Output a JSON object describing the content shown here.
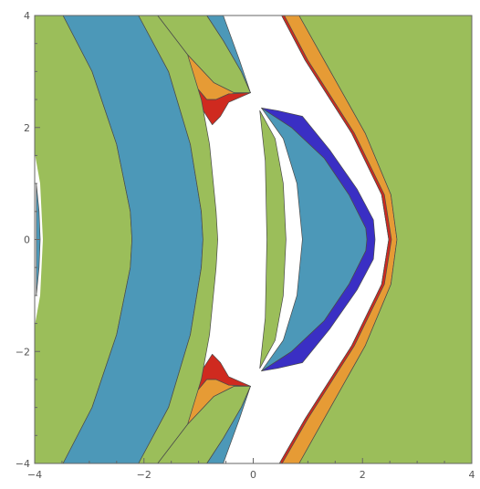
{
  "chart_data": {
    "type": "region-plot",
    "title": "",
    "xlabel": "",
    "ylabel": "",
    "xlim": [
      -4,
      4
    ],
    "ylim": [
      -4,
      4
    ],
    "grid": false,
    "legend": "none",
    "x_ticks": [
      {
        "value": -4,
        "label": "−4"
      },
      {
        "value": -2,
        "label": "−2"
      },
      {
        "value": 0,
        "label": "0"
      },
      {
        "value": 2,
        "label": "2"
      },
      {
        "value": 4,
        "label": "4"
      }
    ],
    "y_ticks": [
      {
        "value": 4,
        "label": "4"
      },
      {
        "value": 2,
        "label": "2"
      },
      {
        "value": 0,
        "label": "0"
      },
      {
        "value": -2,
        "label": "−2"
      },
      {
        "value": -4,
        "label": "−4"
      }
    ],
    "colors": {
      "green": "#9bbe5a",
      "blue": "#4c98b8",
      "orange": "#e69b35",
      "red": "#cf2a1f",
      "indigo": "#3a2fc4",
      "white": "#ffffff"
    },
    "regions": [
      {
        "name": "right-orange-fringe",
        "color": "orange",
        "points": [
          [
            0.48,
            -4
          ],
          [
            0.95,
            -3.2
          ],
          [
            1.8,
            -1.9
          ],
          [
            2.35,
            -0.8
          ],
          [
            2.48,
            0
          ],
          [
            2.35,
            0.8
          ],
          [
            1.8,
            1.9
          ],
          [
            0.95,
            3.2
          ],
          [
            0.52,
            4
          ],
          [
            0.84,
            4
          ],
          [
            1.3,
            3.2
          ],
          [
            2.05,
            1.9
          ],
          [
            2.52,
            0.8
          ],
          [
            2.63,
            0
          ],
          [
            2.52,
            -0.8
          ],
          [
            2.05,
            -1.9
          ],
          [
            1.3,
            -3.2
          ],
          [
            0.84,
            -4
          ]
        ]
      },
      {
        "name": "right-red-edge",
        "color": "red",
        "points": [
          [
            0.48,
            -4
          ],
          [
            0.95,
            -3.2
          ],
          [
            1.8,
            -1.9
          ],
          [
            2.35,
            -0.8
          ],
          [
            2.48,
            0
          ],
          [
            2.35,
            0.8
          ],
          [
            1.8,
            1.9
          ],
          [
            0.95,
            3.2
          ],
          [
            0.52,
            4
          ],
          [
            0.57,
            4
          ],
          [
            1.0,
            3.2
          ],
          [
            1.85,
            1.9
          ],
          [
            2.4,
            0.8
          ],
          [
            2.53,
            0
          ],
          [
            2.4,
            -0.8
          ],
          [
            1.85,
            -1.9
          ],
          [
            1.0,
            -3.2
          ],
          [
            0.53,
            -4
          ]
        ]
      },
      {
        "name": "right-green",
        "color": "green",
        "points": [
          [
            0.84,
            -4
          ],
          [
            1.3,
            -3.2
          ],
          [
            2.05,
            -1.9
          ],
          [
            2.52,
            -0.8
          ],
          [
            2.63,
            0
          ],
          [
            2.52,
            0.8
          ],
          [
            2.05,
            1.9
          ],
          [
            1.3,
            3.2
          ],
          [
            0.84,
            4
          ],
          [
            4,
            4
          ],
          [
            4,
            -4
          ]
        ]
      },
      {
        "name": "inner-indigo-band",
        "color": "indigo",
        "points": [
          [
            0.15,
            2.35
          ],
          [
            0.45,
            2.3
          ],
          [
            0.9,
            2.2
          ],
          [
            1.4,
            1.6
          ],
          [
            1.9,
            0.9
          ],
          [
            2.2,
            0.35
          ],
          [
            2.23,
            0
          ],
          [
            2.2,
            -0.35
          ],
          [
            1.9,
            -0.9
          ],
          [
            1.4,
            -1.6
          ],
          [
            0.9,
            -2.2
          ],
          [
            0.45,
            -2.3
          ],
          [
            0.15,
            -2.35
          ],
          [
            0.7,
            -2.0
          ],
          [
            1.3,
            -1.45
          ],
          [
            1.75,
            -0.8
          ],
          [
            2.06,
            -0.2
          ],
          [
            2.08,
            0
          ],
          [
            2.06,
            0.2
          ],
          [
            1.75,
            0.8
          ],
          [
            1.3,
            1.45
          ],
          [
            0.7,
            2.0
          ]
        ]
      },
      {
        "name": "inner-blue-lens",
        "color": "blue",
        "points": [
          [
            0.15,
            2.35
          ],
          [
            0.7,
            2.0
          ],
          [
            1.3,
            1.45
          ],
          [
            1.75,
            0.8
          ],
          [
            2.06,
            0.2
          ],
          [
            2.08,
            0
          ],
          [
            2.06,
            -0.2
          ],
          [
            1.75,
            -0.8
          ],
          [
            1.3,
            -1.45
          ],
          [
            0.7,
            -2.0
          ],
          [
            0.15,
            -2.35
          ],
          [
            0.55,
            -1.8
          ],
          [
            0.8,
            -1.0
          ],
          [
            0.9,
            0
          ],
          [
            0.8,
            1.0
          ],
          [
            0.55,
            1.8
          ]
        ]
      },
      {
        "name": "inner-green-lens",
        "color": "green",
        "points": [
          [
            0.12,
            2.3
          ],
          [
            0.4,
            1.8
          ],
          [
            0.55,
            1.0
          ],
          [
            0.6,
            0
          ],
          [
            0.55,
            -1.0
          ],
          [
            0.4,
            -1.8
          ],
          [
            0.12,
            -2.3
          ],
          [
            0.22,
            -1.4
          ],
          [
            0.25,
            0
          ],
          [
            0.22,
            1.4
          ]
        ]
      },
      {
        "name": "upper-white-sliver-fill",
        "color": "blue",
        "points": [
          [
            -0.85,
            4
          ],
          [
            -0.55,
            3.55
          ],
          [
            -0.22,
            3.0
          ],
          [
            -0.05,
            2.62
          ],
          [
            -0.25,
            3.2
          ],
          [
            -0.55,
            4
          ]
        ]
      },
      {
        "name": "upper-green-tongue",
        "color": "green",
        "points": [
          [
            -1.75,
            4
          ],
          [
            -1.2,
            3.3
          ],
          [
            -0.72,
            2.8
          ],
          [
            -0.35,
            2.62
          ],
          [
            -0.05,
            2.62
          ],
          [
            -0.22,
            3.0
          ],
          [
            -0.55,
            3.55
          ],
          [
            -0.85,
            4
          ]
        ]
      },
      {
        "name": "upper-orange-horn",
        "color": "orange",
        "points": [
          [
            -1.55,
            3.3
          ],
          [
            -1.15,
            2.85
          ],
          [
            -0.85,
            2.5
          ],
          [
            -0.68,
            2.5
          ],
          [
            -0.45,
            2.6
          ],
          [
            -0.05,
            2.62
          ],
          [
            -0.35,
            2.62
          ],
          [
            -0.72,
            2.8
          ],
          [
            -1.2,
            3.3
          ]
        ]
      },
      {
        "name": "upper-red-horn",
        "color": "red",
        "points": [
          [
            -1.15,
            2.85
          ],
          [
            -0.98,
            2.4
          ],
          [
            -0.75,
            2.05
          ],
          [
            -0.6,
            2.2
          ],
          [
            -0.45,
            2.45
          ],
          [
            -0.05,
            2.62
          ],
          [
            -0.45,
            2.6
          ],
          [
            -0.68,
            2.5
          ],
          [
            -0.85,
            2.5
          ]
        ]
      },
      {
        "name": "lower-white-sliver-fill",
        "color": "blue",
        "points": [
          [
            -0.85,
            -4
          ],
          [
            -0.55,
            -3.55
          ],
          [
            -0.22,
            -3.0
          ],
          [
            -0.05,
            -2.62
          ],
          [
            -0.25,
            -3.2
          ],
          [
            -0.55,
            -4
          ]
        ]
      },
      {
        "name": "lower-green-tongue",
        "color": "green",
        "points": [
          [
            -1.75,
            -4
          ],
          [
            -1.2,
            -3.3
          ],
          [
            -0.72,
            -2.8
          ],
          [
            -0.35,
            -2.62
          ],
          [
            -0.05,
            -2.62
          ],
          [
            -0.22,
            -3.0
          ],
          [
            -0.55,
            -3.55
          ],
          [
            -0.85,
            -4
          ]
        ]
      },
      {
        "name": "lower-orange-horn",
        "color": "orange",
        "points": [
          [
            -1.55,
            -3.3
          ],
          [
            -1.15,
            -2.85
          ],
          [
            -0.85,
            -2.5
          ],
          [
            -0.68,
            -2.5
          ],
          [
            -0.45,
            -2.6
          ],
          [
            -0.05,
            -2.62
          ],
          [
            -0.35,
            -2.62
          ],
          [
            -0.72,
            -2.8
          ],
          [
            -1.2,
            -3.3
          ]
        ]
      },
      {
        "name": "lower-red-horn",
        "color": "red",
        "points": [
          [
            -1.15,
            -2.85
          ],
          [
            -0.98,
            -2.4
          ],
          [
            -0.75,
            -2.05
          ],
          [
            -0.6,
            -2.2
          ],
          [
            -0.45,
            -2.45
          ],
          [
            -0.05,
            -2.62
          ],
          [
            -0.45,
            -2.6
          ],
          [
            -0.68,
            -2.5
          ],
          [
            -0.85,
            -2.5
          ]
        ]
      },
      {
        "name": "left-green-wall",
        "color": "green",
        "points": [
          [
            -4,
            4
          ],
          [
            -3.48,
            4
          ],
          [
            -2.95,
            3.0
          ],
          [
            -2.5,
            1.7
          ],
          [
            -2.25,
            0.5
          ],
          [
            -2.22,
            0
          ],
          [
            -2.25,
            -0.5
          ],
          [
            -2.5,
            -1.7
          ],
          [
            -2.95,
            -3.0
          ],
          [
            -3.48,
            -4
          ],
          [
            -4,
            -4
          ]
        ]
      },
      {
        "name": "left-blue-band",
        "color": "blue",
        "points": [
          [
            -3.48,
            4
          ],
          [
            -2.95,
            3.0
          ],
          [
            -2.5,
            1.7
          ],
          [
            -2.25,
            0.5
          ],
          [
            -2.22,
            0
          ],
          [
            -2.25,
            -0.5
          ],
          [
            -2.5,
            -1.7
          ],
          [
            -2.95,
            -3.0
          ],
          [
            -3.48,
            -4
          ],
          [
            -2.1,
            -4
          ],
          [
            -1.55,
            -3.0
          ],
          [
            -1.15,
            -1.7
          ],
          [
            -0.95,
            -0.5
          ],
          [
            -0.92,
            0
          ],
          [
            -0.95,
            0.5
          ],
          [
            -1.15,
            1.7
          ],
          [
            -1.55,
            3.0
          ],
          [
            -2.1,
            4
          ]
        ]
      },
      {
        "name": "left-green-band",
        "color": "green",
        "points": [
          [
            -2.1,
            4
          ],
          [
            -1.55,
            3.0
          ],
          [
            -1.15,
            1.7
          ],
          [
            -0.95,
            0.5
          ],
          [
            -0.92,
            0
          ],
          [
            -0.95,
            -0.5
          ],
          [
            -1.15,
            -1.7
          ],
          [
            -1.55,
            -3.0
          ],
          [
            -2.1,
            -4
          ],
          [
            -1.75,
            -4
          ],
          [
            -1.2,
            -3.3
          ],
          [
            -0.95,
            -2.5
          ],
          [
            -0.8,
            -1.7
          ],
          [
            -0.68,
            -0.5
          ],
          [
            -0.65,
            0
          ],
          [
            -0.68,
            0.5
          ],
          [
            -0.8,
            1.7
          ],
          [
            -0.95,
            2.5
          ],
          [
            -1.2,
            3.3
          ],
          [
            -1.75,
            4
          ]
        ]
      },
      {
        "name": "left-white-notch",
        "color": "white",
        "points": [
          [
            -4,
            1.55
          ],
          [
            -3.9,
            1.0
          ],
          [
            -3.85,
            0
          ],
          [
            -3.9,
            -1.0
          ],
          [
            -4,
            -1.55
          ]
        ]
      },
      {
        "name": "left-blue-sliver",
        "color": "blue",
        "points": [
          [
            -3.97,
            1.0
          ],
          [
            -3.92,
            0.5
          ],
          [
            -3.9,
            0
          ],
          [
            -3.92,
            -0.5
          ],
          [
            -3.97,
            -1.0
          ]
        ]
      }
    ]
  }
}
